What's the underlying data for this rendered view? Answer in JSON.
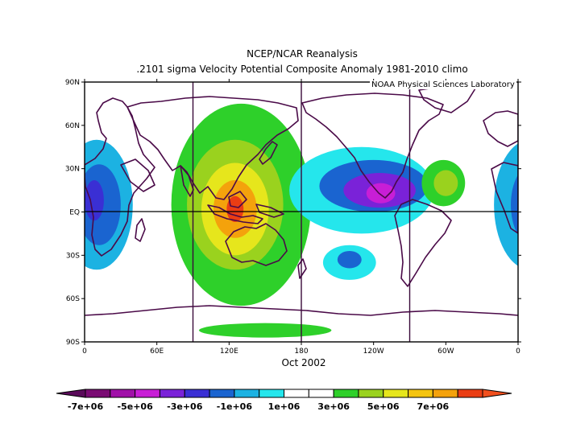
{
  "title": "NCEP/NCAR Reanalysis",
  "subtitle": ".2101 sigma Velocity Potential  Composite Anomaly 1981-2010 climo",
  "credit": "NOAA Physical Sciences Laboratory",
  "period": "Oct 2002",
  "colors": {
    "frame": "#000000",
    "coast": "#4a0a48",
    "divider": "#3a0a3a"
  },
  "chart_data": {
    "type": "heatmap",
    "title": "NCEP/NCAR Reanalysis",
    "variable": ".2101 sigma Velocity Potential  Composite Anomaly 1981-2010 climo",
    "time": "Oct 2002",
    "lon_range": [
      0,
      360
    ],
    "lat_range": [
      -90,
      90
    ],
    "lat_ticks": [
      {
        "value": 90,
        "label": "90N"
      },
      {
        "value": 60,
        "label": "60N"
      },
      {
        "value": 30,
        "label": "30N"
      },
      {
        "value": 0,
        "label": "EQ"
      },
      {
        "value": -30,
        "label": "30S"
      },
      {
        "value": -60,
        "label": "60S"
      },
      {
        "value": -90,
        "label": "90S"
      }
    ],
    "lon_ticks": [
      {
        "value": 0,
        "label": "0"
      },
      {
        "value": 60,
        "label": "60E"
      },
      {
        "value": 120,
        "label": "120E"
      },
      {
        "value": 180,
        "label": "180"
      },
      {
        "value": 240,
        "label": "120W"
      },
      {
        "value": 300,
        "label": "60W"
      },
      {
        "value": 360,
        "label": "0"
      }
    ],
    "divider_lons": [
      90,
      180,
      270
    ],
    "colorbar": {
      "levels": [
        "-7e+06",
        "-5e+06",
        "-3e+06",
        "-1e+06",
        "1e+06",
        "3e+06",
        "5e+06",
        "7e+06"
      ],
      "bins": [
        {
          "range": [
            -8000000.0,
            -7000000.0
          ],
          "color": "#7a0b73"
        },
        {
          "range": [
            -7000000.0,
            -6000000.0
          ],
          "color": "#a010a8"
        },
        {
          "range": [
            -6000000.0,
            -5000000.0
          ],
          "color": "#c81ed6"
        },
        {
          "range": [
            -5000000.0,
            -4000000.0
          ],
          "color": "#7a22d8"
        },
        {
          "range": [
            -4000000.0,
            -3000000.0
          ],
          "color": "#3a2fd4"
        },
        {
          "range": [
            -3000000.0,
            -2000000.0
          ],
          "color": "#1a64d0"
        },
        {
          "range": [
            -2000000.0,
            -1000000.0
          ],
          "color": "#1cb2e2"
        },
        {
          "range": [
            -1000000.0,
            0
          ],
          "color": "#25e6ec"
        },
        {
          "range": [
            0,
            1000000.0
          ],
          "color": "#ffffff"
        },
        {
          "range": [
            1000000.0,
            2000000.0
          ],
          "color": "#ffffff"
        },
        {
          "range": [
            2000000.0,
            3000000.0
          ],
          "color": "#2ed02a"
        },
        {
          "range": [
            3000000.0,
            4000000.0
          ],
          "color": "#9ad21e"
        },
        {
          "range": [
            4000000.0,
            5000000.0
          ],
          "color": "#e6e61c"
        },
        {
          "range": [
            5000000.0,
            6000000.0
          ],
          "color": "#f4c410"
        },
        {
          "range": [
            6000000.0,
            7000000.0
          ],
          "color": "#f4a20c"
        },
        {
          "range": [
            7000000.0,
            8000000.0
          ],
          "color": "#ea3d14"
        }
      ],
      "end_colors": {
        "low": "#5a0a5a",
        "high": "#f2501e"
      }
    },
    "anomaly_centers": [
      {
        "name": "indian-ocean-negative",
        "lon": 10,
        "lat": 5,
        "rx": 30,
        "ry": 45,
        "color": "#1cb2e2"
      },
      {
        "name": "indian-ocean-core",
        "lon": 12,
        "lat": 5,
        "rx": 18,
        "ry": 28,
        "color": "#1a64d0"
      },
      {
        "name": "africa-deep",
        "lon": 8,
        "lat": 8,
        "rx": 8,
        "ry": 14,
        "color": "#3a2fd4"
      },
      {
        "name": "maritime-positive-outer",
        "lon": 130,
        "lat": 5,
        "rx": 58,
        "ry": 70,
        "color": "#2ed02a"
      },
      {
        "name": "maritime-positive-2",
        "lon": 125,
        "lat": 5,
        "rx": 40,
        "ry": 45,
        "color": "#9ad21e"
      },
      {
        "name": "maritime-positive-3",
        "lon": 125,
        "lat": 2,
        "rx": 28,
        "ry": 32,
        "color": "#e6e61c"
      },
      {
        "name": "maritime-positive-4",
        "lon": 125,
        "lat": 2,
        "rx": 18,
        "ry": 20,
        "color": "#f4a20c"
      },
      {
        "name": "maritime-positive-core",
        "lon": 125,
        "lat": 2,
        "rx": 7,
        "ry": 9,
        "color": "#ea3d14"
      },
      {
        "name": "east-pacific-negative-outer",
        "lon": 230,
        "lat": 15,
        "rx": 60,
        "ry": 30,
        "color": "#25e6ec"
      },
      {
        "name": "east-pacific-negative-2",
        "lon": 240,
        "lat": 18,
        "rx": 45,
        "ry": 18,
        "color": "#1a64d0"
      },
      {
        "name": "east-pacific-negative-3",
        "lon": 245,
        "lat": 15,
        "rx": 30,
        "ry": 12,
        "color": "#7a22d8"
      },
      {
        "name": "east-pacific-negative-core",
        "lon": 246,
        "lat": 13,
        "rx": 12,
        "ry": 7,
        "color": "#c81ed6"
      },
      {
        "name": "atlantic-positive",
        "lon": 298,
        "lat": 20,
        "rx": 18,
        "ry": 16,
        "color": "#2ed02a"
      },
      {
        "name": "atlantic-positive-core",
        "lon": 300,
        "lat": 20,
        "rx": 10,
        "ry": 9,
        "color": "#9ad21e"
      },
      {
        "name": "south-pacific-negative",
        "lon": 220,
        "lat": -35,
        "rx": 22,
        "ry": 12,
        "color": "#25e6ec"
      },
      {
        "name": "south-pacific-negative-core",
        "lon": 220,
        "lat": -33,
        "rx": 10,
        "ry": 6,
        "color": "#1a64d0"
      },
      {
        "name": "antarctic-positive",
        "lon": 150,
        "lat": -82,
        "rx": 55,
        "ry": 5,
        "color": "#2ed02a"
      }
    ]
  }
}
